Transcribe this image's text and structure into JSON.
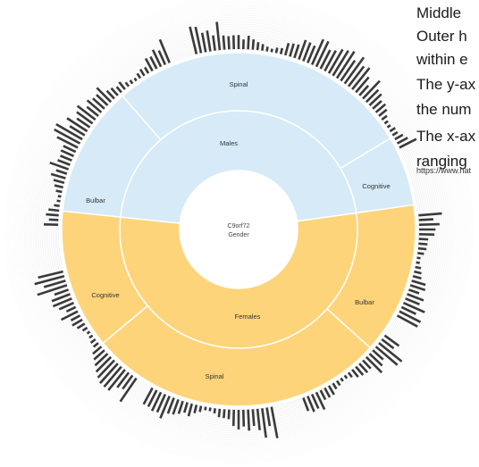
{
  "side_text": [
    "Middle",
    "Outer h",
    "within e",
    "The y-ax",
    "the num",
    "The x-ax",
    "ranging"
  ],
  "url": "https://www.nat",
  "colors": {
    "males": "#d6eaf7",
    "females": "#fdd479",
    "bars": "#3a3a3a",
    "grid": "#d0d0d0"
  },
  "chart_data": {
    "type": "sunburst",
    "center_label": [
      "C9orf72",
      "Gender"
    ],
    "inner_ring": [
      {
        "label": "Males",
        "share": 0.48
      },
      {
        "label": "Females",
        "share": 0.52
      }
    ],
    "outer_ring": [
      {
        "label": "Spinal",
        "group": "Males"
      },
      {
        "label": "Cognitive",
        "group": "Males"
      },
      {
        "label": "Bulbar",
        "group": "Females"
      },
      {
        "label": "Spinal",
        "group": "Females"
      },
      {
        "label": "Cognitive",
        "group": "Females"
      },
      {
        "label": "Bulbar",
        "group": "Males"
      }
    ]
  }
}
